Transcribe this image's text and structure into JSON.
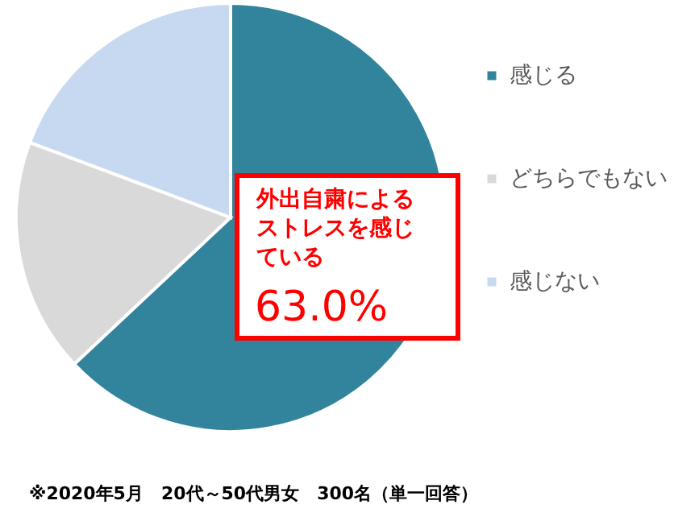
{
  "chart_data": {
    "type": "pie",
    "categories": [
      "感じる",
      "どちらでもない",
      "感じない"
    ],
    "values": [
      63.0,
      17.7,
      19.3
    ],
    "colors": [
      "#31849b",
      "#d9d9d9",
      "#c6d9f1"
    ],
    "value_labels": [
      "63.0%",
      null,
      null
    ],
    "legend": "right",
    "annotations": [
      "外出自粛によるストレスを感じている",
      "※2020年5月　20代～50代男女　300名（単一回答）"
    ]
  }
}
